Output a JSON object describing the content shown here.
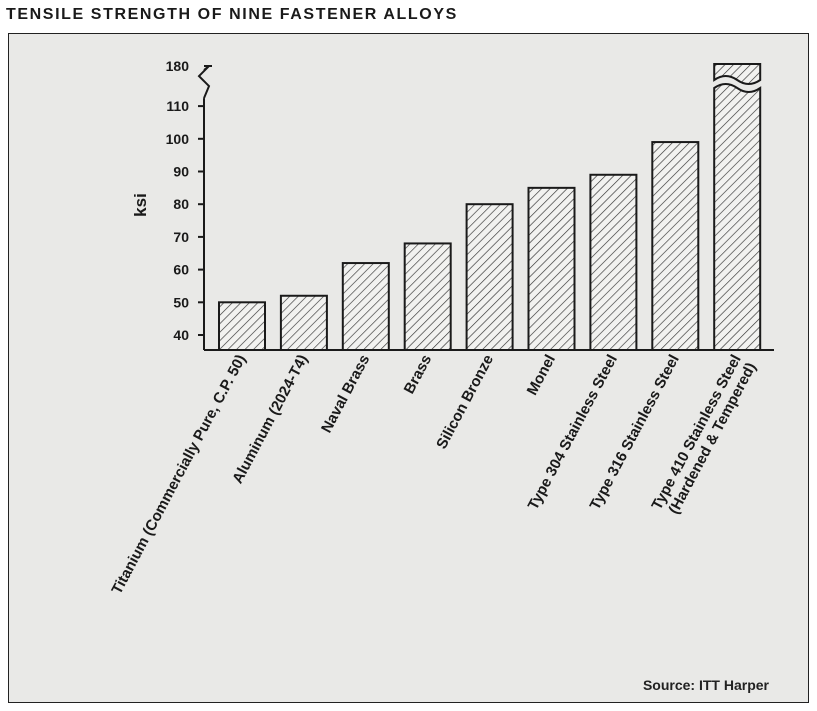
{
  "title": "TENSILE STRENGTH OF NINE FASTENER ALLOYS",
  "source": "Source: ITT Harper",
  "chart_data": {
    "type": "bar",
    "title": "TENSILE STRENGTH OF NINE FASTENER ALLOYS",
    "xlabel": "",
    "ylabel": "ksi",
    "yticks": [
      40,
      50,
      60,
      70,
      80,
      90,
      100,
      110,
      180
    ],
    "ylim": [
      35,
      180
    ],
    "axis_break_between": [
      110,
      180
    ],
    "grid": false,
    "categories": [
      "Titanium (Commercially Pure, C.P. 50)",
      "Aluminum (2024-T4)",
      "Naval Brass",
      "Brass",
      "Silicon Bronze",
      "Monel",
      "Type 304 Stainless Steel",
      "Type 316 Stainless Steel",
      "Type 410 Stainless Steel (Hardened & Tempered)"
    ],
    "label_lines": [
      [
        "Titanium (Commercially Pure, C.P. 50)"
      ],
      [
        "Aluminum (2024-T4)"
      ],
      [
        "Naval Brass"
      ],
      [
        "Brass"
      ],
      [
        "Silicon Bronze"
      ],
      [
        "Monel"
      ],
      [
        "Type 304 Stainless Steel"
      ],
      [
        "Type 316 Stainless Steel"
      ],
      [
        "Type 410 Stainless Steel",
        "(Hardened & Tempered)"
      ]
    ],
    "values": [
      50,
      52,
      62,
      68,
      80,
      85,
      89,
      99,
      180
    ],
    "bar_pattern": "diagonal-hatch",
    "bar_fill": "#f2f2f0",
    "stroke": "#1a1a1a"
  }
}
